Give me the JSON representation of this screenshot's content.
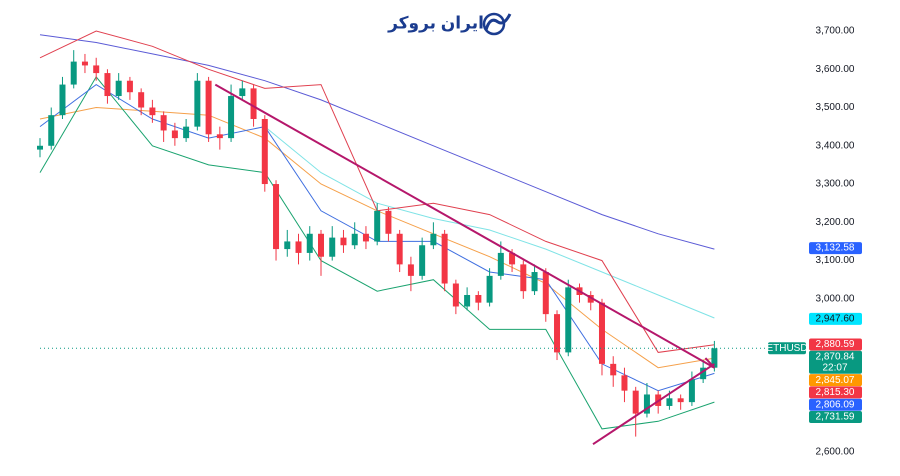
{
  "chart_data": {
    "type": "candlestick",
    "symbol": "ETHUSD",
    "logo": "ایران بروکر",
    "countdown": "22:07",
    "ylim": [
      2550,
      3781
    ],
    "xlim": [
      -0.5,
      61
    ],
    "yticks": [
      {
        "value": 3700,
        "label": "3,700.00"
      },
      {
        "value": 3600,
        "label": "3,600.00"
      },
      {
        "value": 3500,
        "label": "3,500.00"
      },
      {
        "value": 3400,
        "label": "3,400.00"
      },
      {
        "value": 3300,
        "label": "3,300.00"
      },
      {
        "value": 3200,
        "label": "3,200.00"
      },
      {
        "value": 3100,
        "label": "3,100.00"
      },
      {
        "value": 3000,
        "label": "3,000.00"
      },
      {
        "value": 2600,
        "label": "2,600.00"
      }
    ],
    "up_color": "#089981",
    "down_color": "#f23645",
    "open": [
      3390,
      3400,
      3480,
      3560,
      3620,
      3610,
      3590,
      3530,
      3570,
      3540,
      3500,
      3480,
      3440,
      3420,
      3450,
      3570,
      3430,
      3420,
      3530,
      3550,
      3470,
      3300,
      3130,
      3150,
      3120,
      3170,
      3110,
      3160,
      3140,
      3170,
      3150,
      3230,
      3170,
      3090,
      3060,
      3140,
      3170,
      3040,
      2980,
      3010,
      2990,
      3060,
      3120,
      3090,
      3020,
      3070,
      2960,
      2860,
      3030,
      3010,
      2990,
      2830,
      2800,
      2760,
      2700,
      2750,
      2720,
      2740,
      2730,
      2790,
      2820
    ],
    "high": [
      3420,
      3500,
      3580,
      3650,
      3640,
      3630,
      3600,
      3590,
      3580,
      3550,
      3520,
      3490,
      3460,
      3470,
      3590,
      3580,
      3450,
      3560,
      3570,
      3560,
      3480,
      3310,
      3180,
      3170,
      3190,
      3180,
      3190,
      3180,
      3200,
      3190,
      3250,
      3240,
      3180,
      3110,
      3160,
      3200,
      3180,
      3050,
      3030,
      3020,
      3080,
      3150,
      3130,
      3100,
      3090,
      3080,
      2970,
      3050,
      3040,
      3020,
      3000,
      2850,
      2820,
      2770,
      2780,
      2760,
      2760,
      2750,
      2810,
      2840,
      2890
    ],
    "low": [
      3370,
      3390,
      3470,
      3550,
      3590,
      3570,
      3510,
      3520,
      3520,
      3480,
      3460,
      3410,
      3400,
      3410,
      3440,
      3410,
      3390,
      3410,
      3520,
      3450,
      3280,
      3100,
      3110,
      3090,
      3100,
      3060,
      3100,
      3120,
      3130,
      3130,
      3140,
      3150,
      3070,
      3020,
      3050,
      3130,
      3020,
      2960,
      2970,
      2970,
      2980,
      3050,
      3070,
      3000,
      3010,
      2940,
      2840,
      2850,
      2990,
      2970,
      2800,
      2770,
      2730,
      2640,
      2690,
      2700,
      2710,
      2710,
      2720,
      2780,
      2810
    ],
    "close": [
      3400,
      3480,
      3560,
      3620,
      3610,
      3590,
      3530,
      3570,
      3540,
      3500,
      3480,
      3440,
      3420,
      3450,
      3570,
      3430,
      3420,
      3530,
      3550,
      3470,
      3300,
      3130,
      3150,
      3120,
      3170,
      3110,
      3160,
      3140,
      3170,
      3150,
      3230,
      3170,
      3090,
      3060,
      3140,
      3170,
      3040,
      2980,
      3010,
      2990,
      3060,
      3120,
      3090,
      3020,
      3070,
      2960,
      2860,
      3030,
      3010,
      2990,
      2830,
      2800,
      2760,
      2700,
      2750,
      2720,
      2740,
      2730,
      2790,
      2820,
      2870.84
    ],
    "indicators": [
      {
        "color": "#5b5bd6",
        "x": [
          0,
          5,
          10,
          15,
          20,
          25,
          30,
          35,
          40,
          45,
          50,
          55,
          60
        ],
        "values": [
          3690,
          3670,
          3640,
          3610,
          3570,
          3520,
          3460,
          3400,
          3340,
          3280,
          3220,
          3170,
          3130
        ]
      },
      {
        "color": "#7fe3e6",
        "x": [
          20,
          25,
          30,
          35,
          40,
          45,
          50,
          55,
          60
        ],
        "values": [
          3450,
          3330,
          3250,
          3210,
          3180,
          3130,
          3070,
          3010,
          2950
        ]
      },
      {
        "color": "#f5a04a",
        "x": [
          0,
          5,
          10,
          15,
          20,
          25,
          30,
          35,
          40,
          45,
          50,
          55,
          60
        ],
        "values": [
          3470,
          3500,
          3490,
          3480,
          3420,
          3300,
          3230,
          3170,
          3110,
          3040,
          2920,
          2820,
          2845
        ]
      },
      {
        "color": "#e0404f",
        "x": [
          0,
          5,
          10,
          15,
          20,
          25,
          30,
          35,
          40,
          45,
          50,
          55,
          60
        ],
        "values": [
          3630,
          3700,
          3660,
          3600,
          3550,
          3560,
          3230,
          3250,
          3220,
          3150,
          3100,
          2860,
          2880
        ]
      },
      {
        "color": "#1aa36f",
        "x": [
          0,
          5,
          10,
          15,
          20,
          25,
          30,
          35,
          40,
          45,
          50,
          55,
          60
        ],
        "values": [
          3330,
          3580,
          3400,
          3350,
          3330,
          3100,
          3020,
          3050,
          2920,
          2920,
          2660,
          2680,
          2730
        ]
      },
      {
        "color": "#3f6fe0",
        "x": [
          0,
          5,
          10,
          15,
          20,
          25,
          30,
          35,
          40,
          45,
          50,
          55,
          60
        ],
        "values": [
          3450,
          3560,
          3470,
          3420,
          3450,
          3230,
          3150,
          3150,
          3070,
          3050,
          2830,
          2760,
          2805
        ]
      }
    ],
    "trendlines": [
      {
        "color": "#b5176b",
        "x": [
          15.6,
          60
        ],
        "values": [
          3560,
          2820
        ]
      },
      {
        "color": "#b5176b",
        "x": [
          49.2,
          60
        ],
        "values": [
          2620,
          2830
        ]
      },
      {
        "color": "#b5176b",
        "x": [
          59.2,
          60
        ],
        "values": [
          2845,
          2820
        ]
      }
    ],
    "price_labels": [
      {
        "value": 3132.58,
        "label": "3,132.58",
        "color": "#2962ff"
      },
      {
        "value": 2947.6,
        "label": "2,947.60",
        "color": "#00e5ff"
      },
      {
        "value": 2880.59,
        "label": "2,880.59",
        "color": "#f23645"
      },
      {
        "value": 2870.84,
        "label": "2,870.84",
        "color": "#089981"
      },
      {
        "value": 2845.07,
        "label": "2,845.07",
        "color": "#ff9800"
      },
      {
        "value": 2815.3,
        "label": "2,815.30",
        "color": "#f23645"
      },
      {
        "value": 2806.09,
        "label": "2,806.09",
        "color": "#2962ff"
      },
      {
        "value": 2731.59,
        "label": "2,731.59",
        "color": "#089981"
      }
    ]
  }
}
